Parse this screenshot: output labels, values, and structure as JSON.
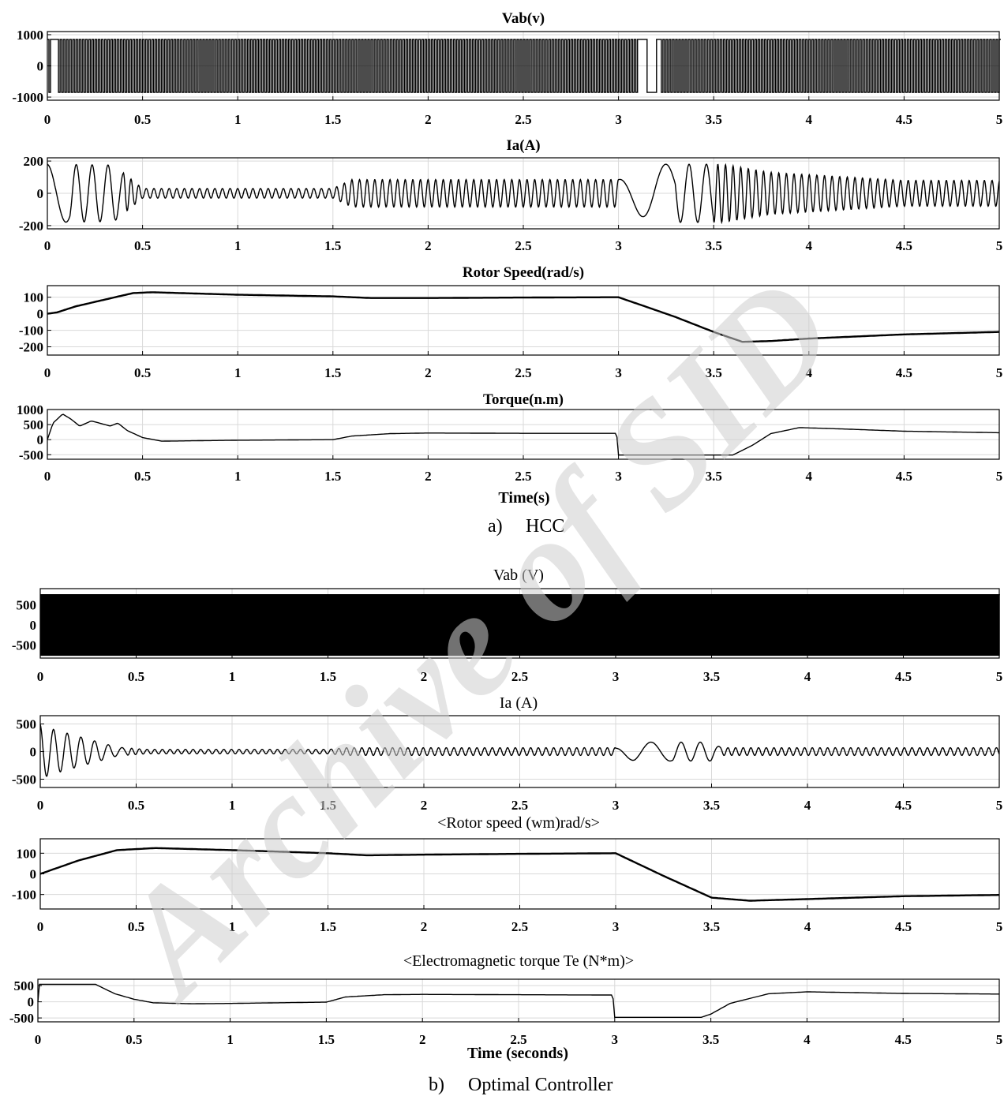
{
  "figure_a": {
    "caption_label": "a)",
    "caption_text": "HCC",
    "xlabel": "Time(s)"
  },
  "figure_b": {
    "caption_label": "b)",
    "caption_text": "Optimal Controller",
    "xlabel": "Time (seconds)"
  },
  "watermark": "Archive of SID",
  "chart_data": [
    {
      "type": "line",
      "panel": "a1",
      "title": "Vab(v)",
      "xlim": [
        0,
        5
      ],
      "ylim": [
        -1100,
        1100
      ],
      "yticks": [
        -1000,
        0,
        1000
      ],
      "xticks": [
        0,
        0.5,
        1,
        1.5,
        2,
        2.5,
        3,
        3.5,
        4,
        4.5,
        5
      ],
      "grid": true,
      "description_values": {
        "amplitude_V": 850
      },
      "series": [
        {
          "x": [
            0,
            0.5,
            1,
            1.5,
            2,
            2.5,
            3,
            3.15,
            3.5,
            4,
            4.5,
            5
          ],
          "y": [
            850,
            -850,
            850,
            -850,
            850,
            -850,
            850,
            -850,
            850,
            -850,
            850,
            -850
          ]
        }
      ]
    },
    {
      "type": "line",
      "panel": "a2",
      "title": "Ia(A)",
      "xlim": [
        0,
        5
      ],
      "ylim": [
        -220,
        220
      ],
      "yticks": [
        -200,
        0,
        200
      ],
      "xticks": [
        0,
        0.5,
        1,
        1.5,
        2,
        2.5,
        3,
        3.5,
        4,
        4.5,
        5
      ],
      "grid": true,
      "series": [
        {
          "x": [
            0,
            0.35,
            0.5,
            1.5,
            1.6,
            3.0,
            3.2,
            3.55,
            3.8,
            4.5,
            5.0
          ],
          "y": [
            180,
            175,
            30,
            30,
            85,
            85,
            180,
            180,
            130,
            80,
            80
          ]
        }
      ]
    },
    {
      "type": "line",
      "panel": "a3",
      "title": "Rotor Speed(rad/s)",
      "xlim": [
        0,
        5
      ],
      "ylim": [
        -250,
        170
      ],
      "yticks": [
        -200,
        -100,
        0,
        100
      ],
      "xticks": [
        0,
        0.5,
        1,
        1.5,
        2,
        2.5,
        3,
        3.5,
        4,
        4.5,
        5
      ],
      "grid": true,
      "series": [
        {
          "x": [
            0,
            0.05,
            0.15,
            0.3,
            0.45,
            0.55,
            1.0,
            1.5,
            1.7,
            2.0,
            2.5,
            3.0,
            3.3,
            3.5,
            3.65,
            3.8,
            4.0,
            4.5,
            5.0
          ],
          "y": [
            0,
            8,
            45,
            85,
            125,
            130,
            115,
            105,
            95,
            95,
            98,
            100,
            -20,
            -110,
            -170,
            -165,
            -150,
            -125,
            -110
          ]
        }
      ]
    },
    {
      "type": "line",
      "panel": "a4",
      "title": "Torque(n.m)",
      "xlim": [
        0,
        5
      ],
      "ylim": [
        -650,
        1000
      ],
      "yticks": [
        -500,
        0,
        500,
        1000
      ],
      "xticks": [
        0,
        0.5,
        1,
        1.5,
        2,
        2.5,
        3,
        3.5,
        4,
        4.5,
        5
      ],
      "grid": true,
      "series": [
        {
          "x": [
            0,
            0.03,
            0.08,
            0.12,
            0.17,
            0.23,
            0.28,
            0.33,
            0.37,
            0.42,
            0.5,
            0.6,
            1.0,
            1.5,
            1.6,
            1.8,
            2.0,
            2.5,
            2.99,
            3.0,
            3.6,
            3.7,
            3.8,
            3.95,
            4.2,
            4.5,
            5.0
          ],
          "y": [
            0,
            550,
            850,
            700,
            450,
            620,
            540,
            450,
            550,
            300,
            70,
            -50,
            -20,
            0,
            120,
            200,
            220,
            210,
            210,
            -510,
            -510,
            -200,
            200,
            400,
            350,
            280,
            230
          ]
        }
      ]
    },
    {
      "type": "line",
      "panel": "b1",
      "title": "Vab (V)",
      "xlim": [
        0,
        5
      ],
      "ylim": [
        -820,
        900
      ],
      "yticks": [
        -500,
        0,
        500
      ],
      "xticks": [
        0,
        0.5,
        1,
        1.5,
        2,
        2.5,
        3,
        3.5,
        4,
        4.5,
        5
      ],
      "grid": true,
      "series": [
        {
          "x": [
            0,
            1,
            2,
            3,
            4,
            5
          ],
          "y": [
            750,
            -750,
            750,
            -750,
            750,
            -750
          ]
        }
      ]
    },
    {
      "type": "line",
      "panel": "b2",
      "title": "Ia (A)",
      "xlim": [
        0,
        5
      ],
      "ylim": [
        -650,
        650
      ],
      "yticks": [
        -500,
        0,
        500
      ],
      "xticks": [
        0,
        0.5,
        1,
        1.5,
        2,
        2.5,
        3,
        3.5,
        4,
        4.5,
        5
      ],
      "grid": true,
      "series": [
        {
          "x": [
            0,
            0.05,
            0.4,
            0.55,
            1.5,
            1.6,
            3.0,
            3.1,
            3.5,
            3.55,
            5.0
          ],
          "y": [
            500,
            420,
            80,
            40,
            40,
            70,
            70,
            170,
            170,
            70,
            70
          ]
        }
      ]
    },
    {
      "type": "line",
      "panel": "b3",
      "title": "<Rotor speed (wm)rad/s>",
      "xlim": [
        0,
        5
      ],
      "ylim": [
        -170,
        170
      ],
      "yticks": [
        -100,
        0,
        100
      ],
      "xticks": [
        0,
        0.5,
        1,
        1.5,
        2,
        2.5,
        3,
        3.5,
        4,
        4.5,
        5
      ],
      "grid": true,
      "series": [
        {
          "x": [
            0,
            0.2,
            0.4,
            0.6,
            1.0,
            1.5,
            1.7,
            2.0,
            2.5,
            3.0,
            3.25,
            3.5,
            3.7,
            4.0,
            4.5,
            5.0
          ],
          "y": [
            0,
            65,
            115,
            125,
            115,
            100,
            90,
            93,
            97,
            100,
            -10,
            -115,
            -130,
            -122,
            -108,
            -102
          ]
        }
      ]
    },
    {
      "type": "line",
      "panel": "b4",
      "title": "<Electromagnetic torque Te (N*m)>",
      "xlim": [
        0,
        5
      ],
      "ylim": [
        -620,
        700
      ],
      "yticks": [
        -500,
        0,
        500
      ],
      "xticks": [
        0,
        0.5,
        1,
        1.5,
        2,
        2.5,
        3,
        3.5,
        4,
        4.5,
        5
      ],
      "grid": true,
      "series": [
        {
          "x": [
            0,
            0.005,
            0.3,
            0.4,
            0.5,
            0.6,
            0.8,
            1.0,
            1.5,
            1.6,
            1.8,
            2.0,
            2.5,
            2.99,
            3.0,
            3.45,
            3.5,
            3.6,
            3.8,
            4.0,
            4.5,
            5.0
          ],
          "y": [
            0,
            540,
            540,
            250,
            80,
            -30,
            -60,
            -50,
            -10,
            150,
            220,
            230,
            220,
            210,
            -480,
            -480,
            -380,
            -50,
            250,
            310,
            260,
            240
          ]
        }
      ]
    }
  ]
}
